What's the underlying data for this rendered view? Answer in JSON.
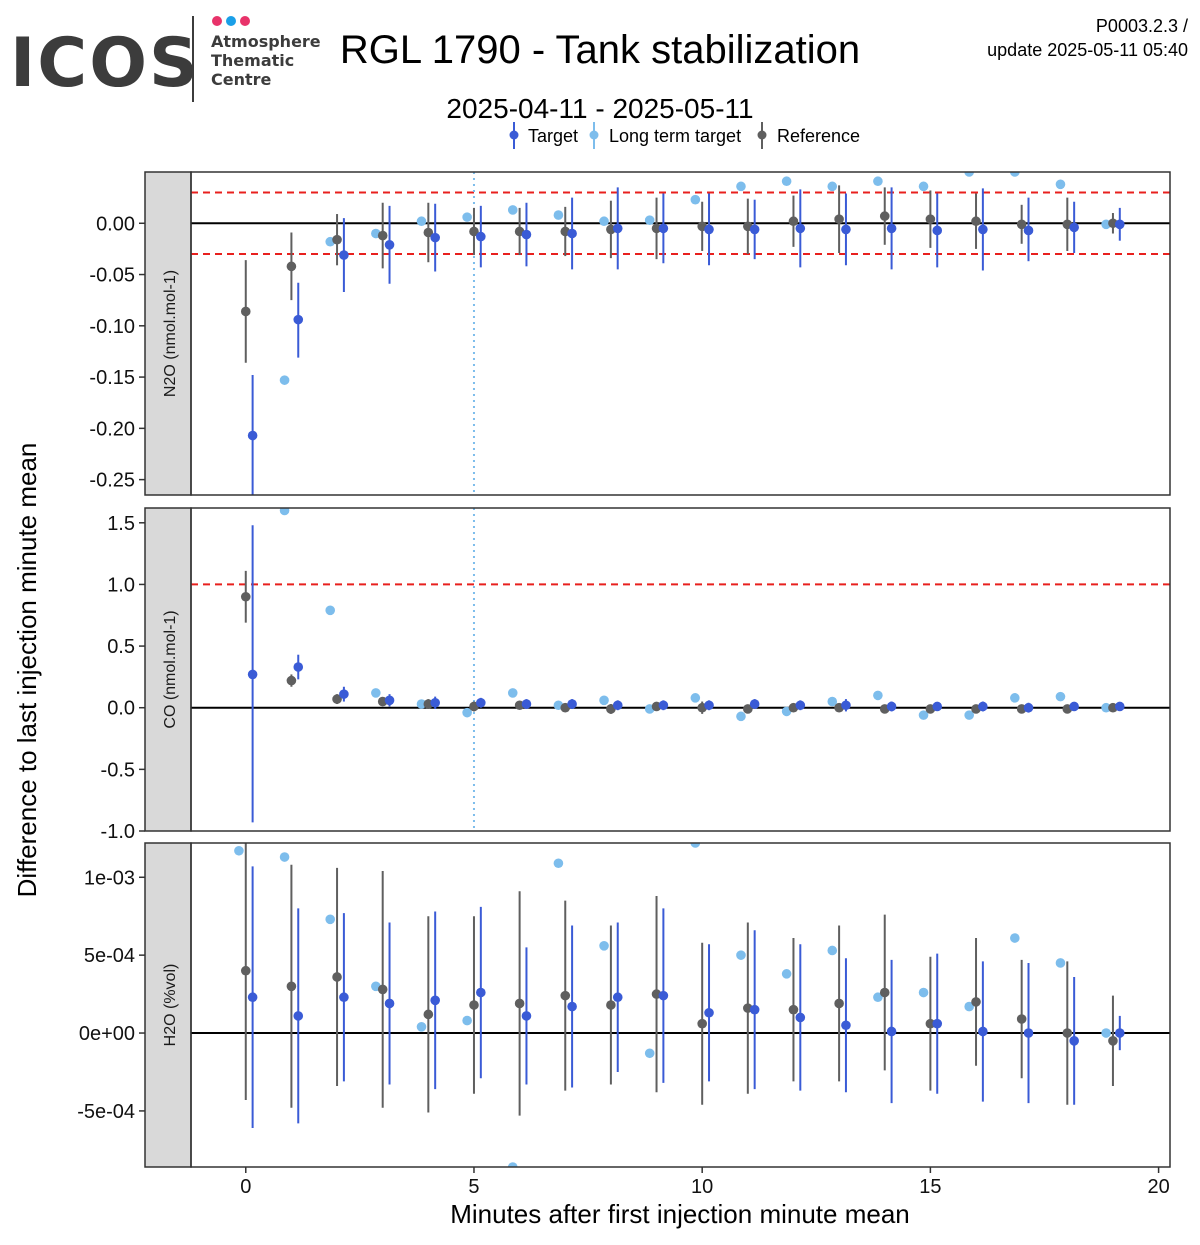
{
  "header": {
    "logo_word": "ICOS",
    "logo_sub": [
      "Atmosphere",
      "Thematic",
      "Centre"
    ],
    "title": "RGL 1790 - Tank stabilization",
    "subtitle": "2025-04-11 - 2025-05-11",
    "code": "P0003.2.3 /",
    "update": "update  2025-05-11 05:40"
  },
  "colors": {
    "target": "#3a5bd6",
    "long_term": "#7dbdec",
    "reference": "#5f5f5f",
    "threshold": "#e8201e",
    "strip": "#d9d9d9",
    "logo_dots": [
      "#e8336a",
      "#1a9fe8",
      "#e8336a"
    ],
    "logo_text": "#3c3c3c"
  },
  "chart_data": {
    "type": "scatter",
    "xlabel": "Minutes after first injection minute mean",
    "ylabel": "Difference to last injection minute mean",
    "xlim": [
      -1.2,
      20.25
    ],
    "x_ticks": [
      0,
      5,
      10,
      15,
      20
    ],
    "x_tick_labels": [
      "0",
      "5",
      "10",
      "15",
      "20"
    ],
    "vline_x": 5,
    "legend": {
      "position": "top",
      "entries": [
        "Target",
        "Long term target",
        "Reference"
      ]
    },
    "panels": [
      {
        "strip": "N2O (nmol.mol-1)",
        "ylim": [
          -0.265,
          0.05
        ],
        "y_ticks": [
          0.0,
          -0.05,
          -0.1,
          -0.15,
          -0.2,
          -0.25
        ],
        "y_tick_labels": [
          "0.00",
          "-0.05",
          "-0.10",
          "-0.15",
          "-0.20",
          "-0.25"
        ],
        "thresholds": [
          0.03,
          -0.03
        ],
        "target": [
          [
            0.15,
            -0.207,
            -0.148,
            -0.265
          ],
          [
            1.15,
            -0.094,
            -0.058,
            -0.131
          ],
          [
            2.15,
            -0.031,
            0.005,
            -0.067
          ],
          [
            3.15,
            -0.021,
            0.017,
            -0.059
          ],
          [
            4.15,
            -0.014,
            0.019,
            -0.047
          ],
          [
            5.15,
            -0.013,
            0.017,
            -0.043
          ],
          [
            6.15,
            -0.011,
            0.02,
            -0.042
          ],
          [
            7.15,
            -0.01,
            0.025,
            -0.045
          ],
          [
            8.15,
            -0.005,
            0.035,
            -0.045
          ],
          [
            9.15,
            -0.005,
            0.029,
            -0.039
          ],
          [
            10.15,
            -0.006,
            0.029,
            -0.041
          ],
          [
            11.15,
            -0.006,
            0.023,
            -0.035
          ],
          [
            12.15,
            -0.005,
            0.033,
            -0.043
          ],
          [
            13.15,
            -0.006,
            0.029,
            -0.041
          ],
          [
            14.15,
            -0.005,
            0.035,
            -0.045
          ],
          [
            15.15,
            -0.007,
            0.029,
            -0.043
          ],
          [
            16.15,
            -0.006,
            0.034,
            -0.046
          ],
          [
            17.15,
            -0.007,
            0.025,
            -0.037
          ],
          [
            18.15,
            -0.004,
            0.021,
            -0.029
          ],
          [
            19.15,
            -0.001,
            0.015,
            -0.017
          ]
        ],
        "long_term": [
          [
            -0.15,
            null
          ],
          [
            0.85,
            -0.153
          ],
          [
            1.85,
            -0.018
          ],
          [
            2.85,
            -0.01
          ],
          [
            3.85,
            0.002
          ],
          [
            4.85,
            0.006
          ],
          [
            5.85,
            0.013
          ],
          [
            6.85,
            0.008
          ],
          [
            7.85,
            0.002
          ],
          [
            8.85,
            0.003
          ],
          [
            9.85,
            0.023
          ],
          [
            10.85,
            0.036
          ],
          [
            11.85,
            0.041
          ],
          [
            12.85,
            0.036
          ],
          [
            13.85,
            0.041
          ],
          [
            14.85,
            0.036
          ],
          [
            15.85,
            0.05
          ],
          [
            16.85,
            0.05
          ],
          [
            17.85,
            0.038
          ],
          [
            18.85,
            -0.001
          ]
        ],
        "reference": [
          [
            0,
            -0.086,
            -0.036,
            -0.136
          ],
          [
            1,
            -0.042,
            -0.009,
            -0.075
          ],
          [
            2,
            -0.016,
            0.009,
            -0.041
          ],
          [
            3,
            -0.012,
            0.02,
            -0.044
          ],
          [
            4,
            -0.009,
            0.02,
            -0.038
          ],
          [
            5,
            -0.008,
            0.015,
            -0.031
          ],
          [
            6,
            -0.008,
            0.015,
            -0.031
          ],
          [
            7,
            -0.008,
            0.016,
            -0.032
          ],
          [
            8,
            -0.006,
            0.022,
            -0.034
          ],
          [
            9,
            -0.005,
            0.025,
            -0.035
          ],
          [
            10,
            -0.003,
            0.021,
            -0.027
          ],
          [
            11,
            -0.003,
            0.024,
            -0.03
          ],
          [
            12,
            0.002,
            0.027,
            -0.023
          ],
          [
            13,
            0.004,
            0.037,
            -0.029
          ],
          [
            14,
            0.007,
            0.035,
            -0.021
          ],
          [
            15,
            0.004,
            0.032,
            -0.024
          ],
          [
            16,
            0.002,
            0.029,
            -0.025
          ],
          [
            17,
            -0.001,
            0.018,
            -0.02
          ],
          [
            18,
            -0.001,
            0.025,
            -0.027
          ],
          [
            19,
            0.0,
            0.01,
            -0.01
          ]
        ]
      },
      {
        "strip": "CO (nmol.mol-1)",
        "ylim": [
          -1.0,
          1.62
        ],
        "y_ticks": [
          1.5,
          1.0,
          0.5,
          0.0,
          -0.5,
          -1.0
        ],
        "y_tick_labels": [
          "1.5",
          "1.0",
          "0.5",
          "0.0",
          "-0.5",
          "-1.0"
        ],
        "thresholds": [
          1.0
        ],
        "target": [
          [
            0.15,
            0.27,
            1.48,
            -0.93
          ],
          [
            1.15,
            0.33,
            0.43,
            0.23
          ],
          [
            2.15,
            0.11,
            0.17,
            0.05
          ],
          [
            3.15,
            0.06,
            0.11,
            0.01
          ],
          [
            4.15,
            0.04,
            0.09,
            -0.01
          ],
          [
            5.15,
            0.04,
            0.08,
            0.0
          ],
          [
            6.15,
            0.03,
            0.07,
            -0.01
          ],
          [
            7.15,
            0.03,
            0.07,
            -0.01
          ],
          [
            8.15,
            0.02,
            0.06,
            -0.02
          ],
          [
            9.15,
            0.02,
            0.06,
            -0.02
          ],
          [
            10.15,
            0.02,
            0.06,
            -0.02
          ],
          [
            11.15,
            0.03,
            0.07,
            -0.01
          ],
          [
            12.15,
            0.02,
            0.06,
            -0.02
          ],
          [
            13.15,
            0.02,
            0.07,
            -0.03
          ],
          [
            14.15,
            0.01,
            0.05,
            -0.03
          ],
          [
            15.15,
            0.01,
            0.04,
            -0.02
          ],
          [
            16.15,
            0.01,
            0.05,
            -0.03
          ],
          [
            17.15,
            0.0,
            0.04,
            -0.04
          ],
          [
            18.15,
            0.01,
            0.04,
            -0.02
          ],
          [
            19.15,
            0.01,
            0.03,
            -0.01
          ]
        ],
        "long_term": [
          [
            -0.15,
            null
          ],
          [
            0.85,
            1.6
          ],
          [
            1.85,
            0.79
          ],
          [
            2.85,
            0.12
          ],
          [
            3.85,
            0.03
          ],
          [
            4.85,
            -0.04
          ],
          [
            5.85,
            0.12
          ],
          [
            6.85,
            0.02
          ],
          [
            7.85,
            0.06
          ],
          [
            8.85,
            -0.01
          ],
          [
            9.85,
            0.08
          ],
          [
            10.85,
            -0.07
          ],
          [
            11.85,
            -0.03
          ],
          [
            12.85,
            0.05
          ],
          [
            13.85,
            0.1
          ],
          [
            14.85,
            -0.06
          ],
          [
            15.85,
            -0.06
          ],
          [
            16.85,
            0.08
          ],
          [
            17.85,
            0.09
          ],
          [
            18.85,
            0.0
          ]
        ],
        "reference": [
          [
            0,
            0.9,
            1.11,
            0.69
          ],
          [
            1,
            0.22,
            0.27,
            0.17
          ],
          [
            2,
            0.07,
            0.11,
            0.03
          ],
          [
            3,
            0.05,
            0.08,
            0.02
          ],
          [
            4,
            0.03,
            0.07,
            -0.01
          ],
          [
            5,
            0.01,
            0.05,
            -0.03
          ],
          [
            6,
            0.02,
            0.05,
            -0.01
          ],
          [
            7,
            0.0,
            0.03,
            -0.03
          ],
          [
            8,
            -0.01,
            0.03,
            -0.05
          ],
          [
            9,
            0.01,
            0.04,
            -0.02
          ],
          [
            10,
            0.0,
            0.05,
            -0.05
          ],
          [
            11,
            -0.01,
            0.02,
            -0.04
          ],
          [
            12,
            0.0,
            0.03,
            -0.03
          ],
          [
            13,
            0.0,
            0.03,
            -0.03
          ],
          [
            14,
            -0.01,
            0.02,
            -0.04
          ],
          [
            15,
            -0.01,
            0.01,
            -0.03
          ],
          [
            16,
            -0.01,
            0.02,
            -0.04
          ],
          [
            17,
            -0.01,
            0.02,
            -0.04
          ],
          [
            18,
            -0.01,
            0.01,
            -0.03
          ],
          [
            19,
            0.0,
            0.01,
            -0.01
          ]
        ]
      },
      {
        "strip": "H2O (%vol)",
        "ylim": [
          -0.00086,
          0.00122
        ],
        "y_ticks": [
          0.001,
          0.0005,
          0.0,
          -0.0005
        ],
        "y_tick_labels": [
          "1e-03",
          "5e-04",
          "0e+00",
          "-5e-04"
        ],
        "thresholds": [],
        "target": [
          [
            0.15,
            0.00023,
            0.00107,
            -0.00061
          ],
          [
            1.15,
            0.00011,
            0.0008,
            -0.00058
          ],
          [
            2.15,
            0.00023,
            0.00077,
            -0.00031
          ],
          [
            3.15,
            0.00019,
            0.00071,
            -0.00033
          ],
          [
            4.15,
            0.00021,
            0.00078,
            -0.00036
          ],
          [
            5.15,
            0.00026,
            0.00081,
            -0.00029
          ],
          [
            6.15,
            0.00011,
            0.00055,
            -0.00033
          ],
          [
            7.15,
            0.00017,
            0.00069,
            -0.00035
          ],
          [
            8.15,
            0.00023,
            0.00071,
            -0.00025
          ],
          [
            9.15,
            0.00024,
            0.0008,
            -0.00032
          ],
          [
            10.15,
            0.00013,
            0.00057,
            -0.00031
          ],
          [
            11.15,
            0.00015,
            0.00066,
            -0.00036
          ],
          [
            12.15,
            0.0001,
            0.00057,
            -0.00037
          ],
          [
            13.15,
            5e-05,
            0.00048,
            -0.00038
          ],
          [
            14.15,
            1e-05,
            0.00047,
            -0.00045
          ],
          [
            15.15,
            6e-05,
            0.00051,
            -0.00039
          ],
          [
            16.15,
            1e-05,
            0.00046,
            -0.00044
          ],
          [
            17.15,
            0.0,
            0.00045,
            -0.00045
          ],
          [
            18.15,
            -5e-05,
            0.00036,
            -0.00046
          ],
          [
            19.15,
            0.0,
            0.00011,
            -0.00011
          ]
        ],
        "long_term": [
          [
            -0.15,
            0.00117
          ],
          [
            0.85,
            0.00113
          ],
          [
            1.85,
            0.00073
          ],
          [
            2.85,
            0.0003
          ],
          [
            3.85,
            4e-05
          ],
          [
            4.85,
            8e-05
          ],
          [
            5.85,
            -0.00086
          ],
          [
            6.85,
            0.00109
          ],
          [
            7.85,
            0.00056
          ],
          [
            8.85,
            -0.00013
          ],
          [
            9.85,
            0.00122
          ],
          [
            10.85,
            0.0005
          ],
          [
            11.85,
            0.00038
          ],
          [
            12.85,
            0.00053
          ],
          [
            13.85,
            0.00023
          ],
          [
            14.85,
            0.00026
          ],
          [
            15.85,
            0.00017
          ],
          [
            16.85,
            0.00061
          ],
          [
            17.85,
            0.00045
          ],
          [
            18.85,
            0.0
          ]
        ],
        "reference": [
          [
            0,
            0.0004,
            0.00123,
            -0.00043
          ],
          [
            1,
            0.0003,
            0.00108,
            -0.00048
          ],
          [
            2,
            0.00036,
            0.00106,
            -0.00034
          ],
          [
            3,
            0.00028,
            0.00104,
            -0.00048
          ],
          [
            4,
            0.00012,
            0.00075,
            -0.00051
          ],
          [
            5,
            0.00018,
            0.00075,
            -0.00039
          ],
          [
            6,
            0.00019,
            0.00091,
            -0.00053
          ],
          [
            7,
            0.00024,
            0.00085,
            -0.00037
          ],
          [
            8,
            0.00018,
            0.00069,
            -0.00033
          ],
          [
            9,
            0.00025,
            0.00088,
            -0.00038
          ],
          [
            10,
            6e-05,
            0.00058,
            -0.00046
          ],
          [
            11,
            0.00016,
            0.00071,
            -0.00039
          ],
          [
            12,
            0.00015,
            0.00061,
            -0.00031
          ],
          [
            13,
            0.00019,
            0.00069,
            -0.00031
          ],
          [
            14,
            0.00026,
            0.00076,
            -0.00024
          ],
          [
            15,
            6e-05,
            0.00049,
            -0.00037
          ],
          [
            16,
            0.0002,
            0.00061,
            -0.00021
          ],
          [
            17,
            9e-05,
            0.00047,
            -0.00029
          ],
          [
            18,
            0.0,
            0.00046,
            -0.00046
          ],
          [
            19,
            -5e-05,
            0.00024,
            -0.00034
          ]
        ]
      }
    ]
  }
}
